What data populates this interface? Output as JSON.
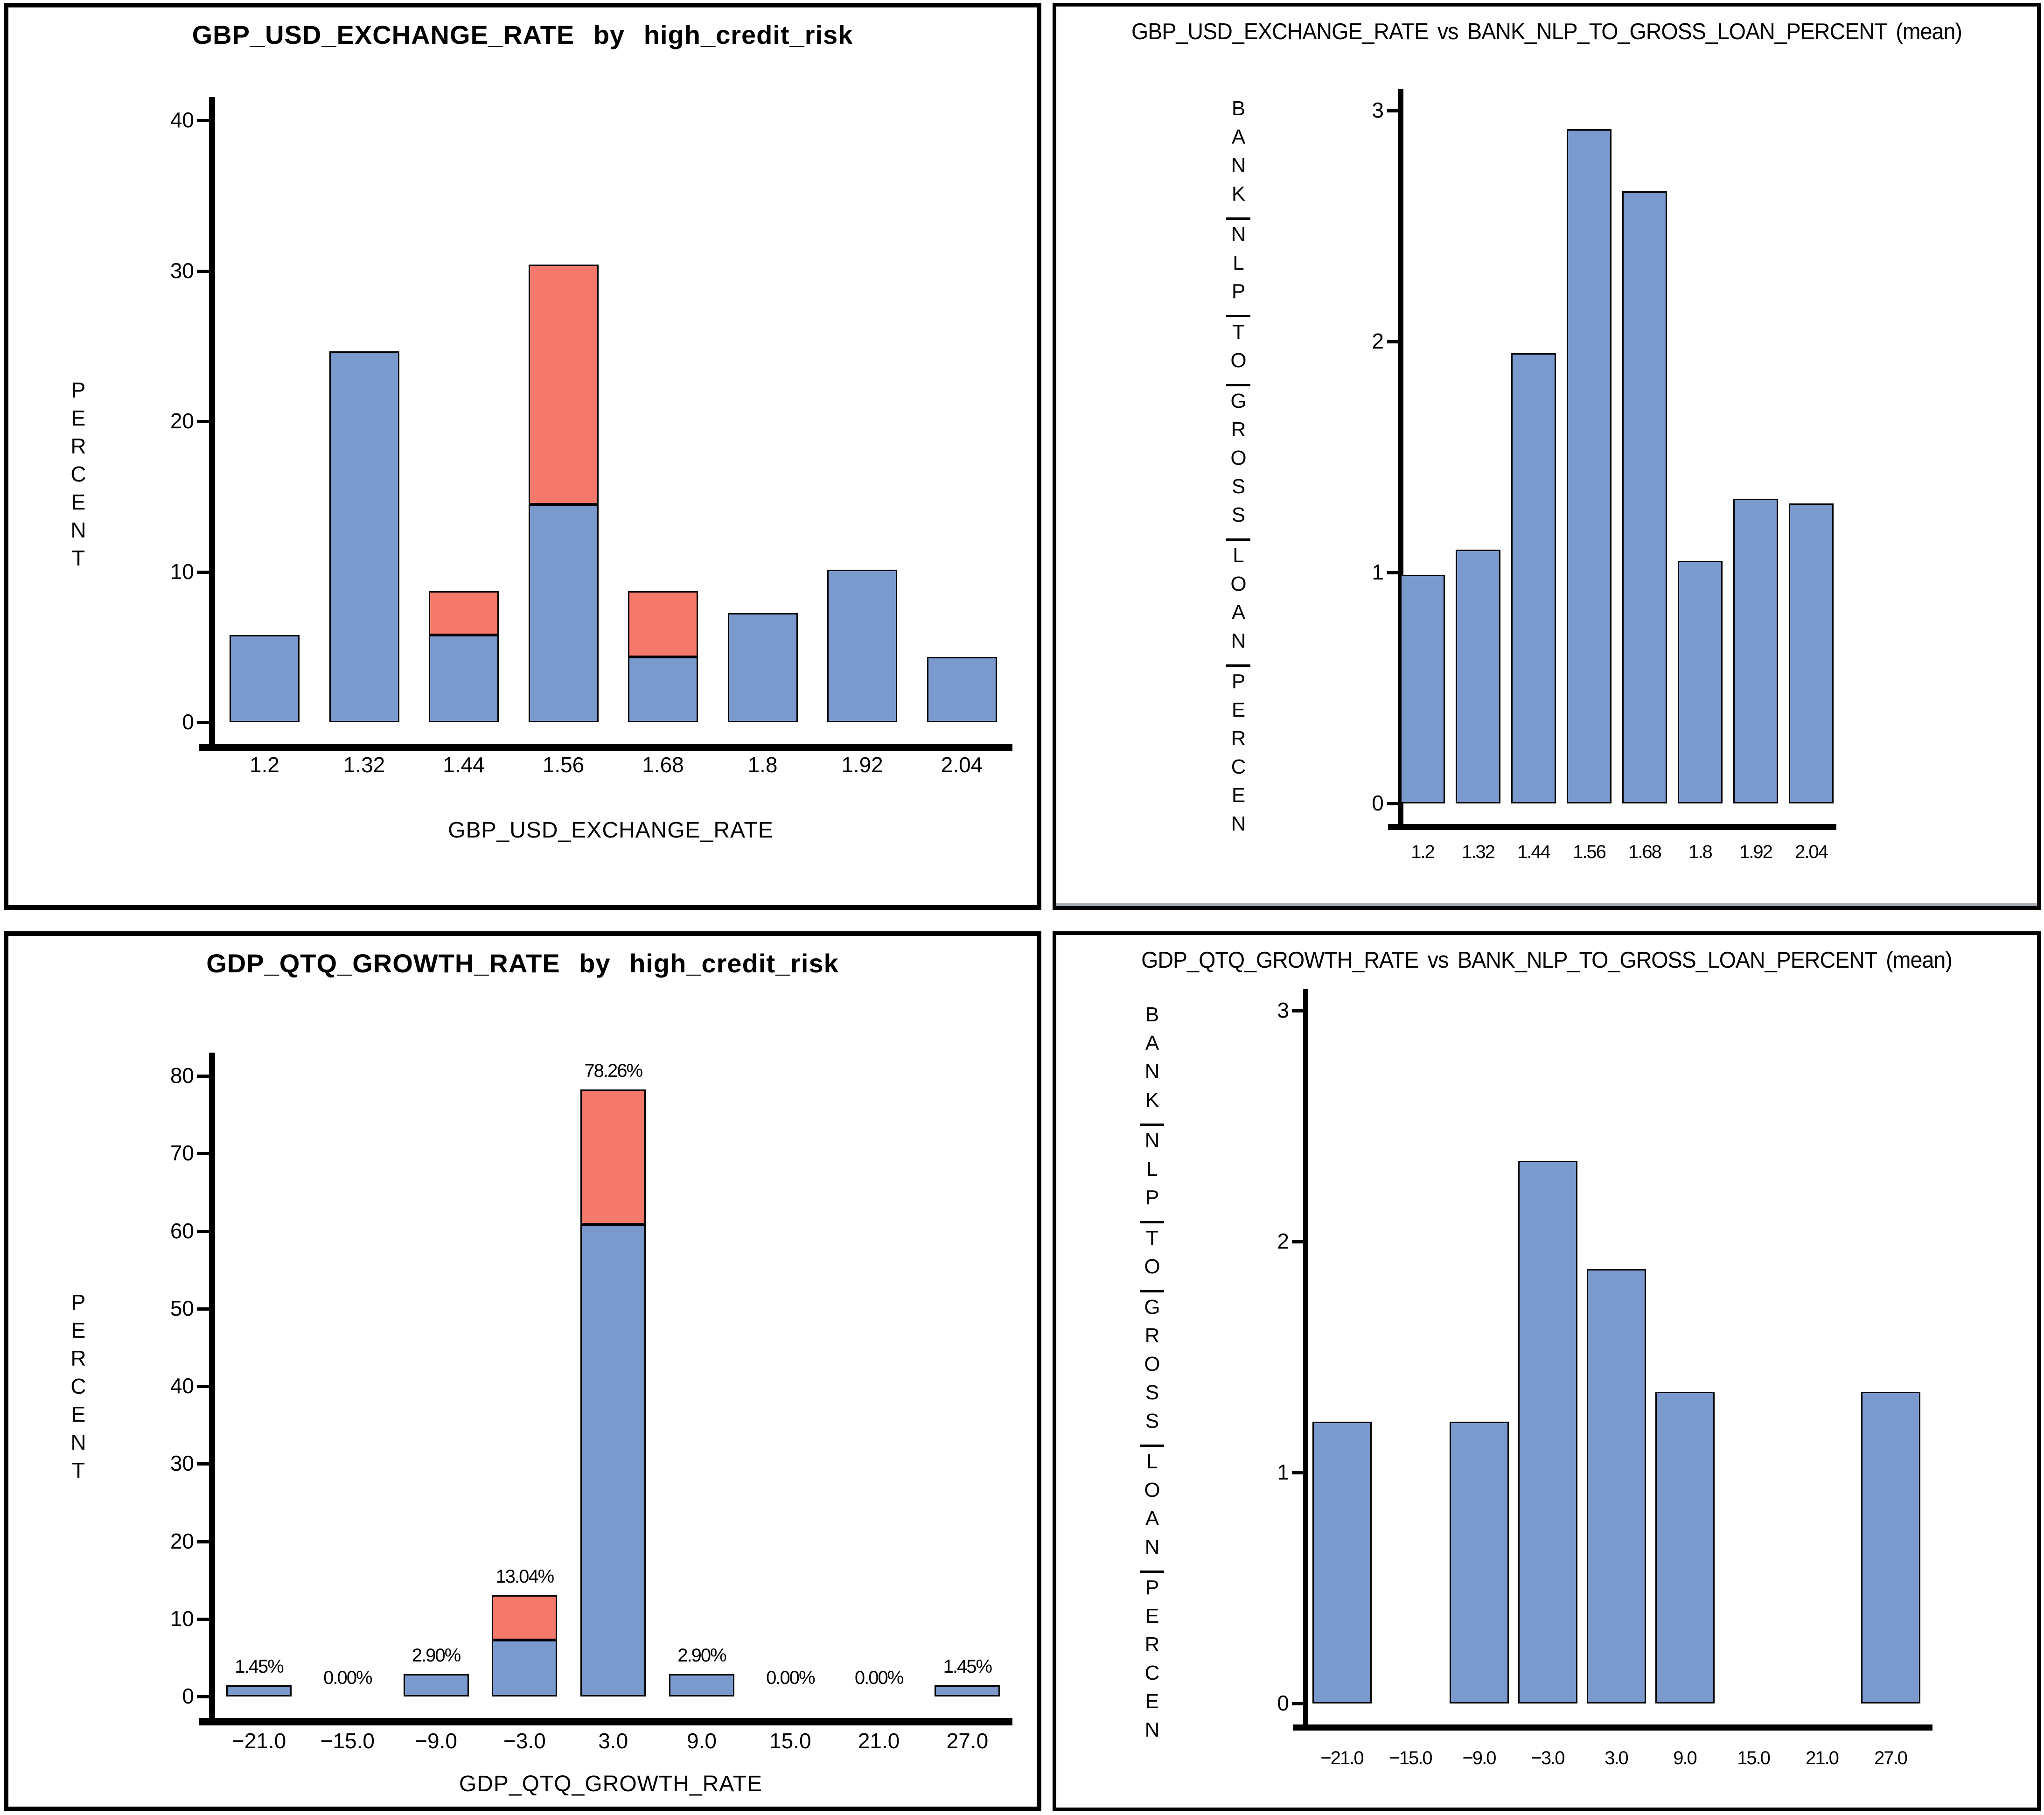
{
  "colors": {
    "bar_blue": "#7a99cc",
    "bar_red": "#f4796a",
    "axis": "#000000",
    "separator_gray": "#a7aeb6"
  },
  "chart_data": [
    {
      "type": "bar",
      "stacked": true,
      "title": "GBP_USD_EXCHANGE_RATE by high_credit_risk",
      "xlabel": "GBP_USD_EXCHANGE_RATE",
      "ylabel": "PERCENT",
      "categories": [
        "1.2",
        "1.32",
        "1.44",
        "1.56",
        "1.68",
        "1.8",
        "1.92",
        "2.04"
      ],
      "series": [
        {
          "name": "group_blue",
          "color_key": "bar_blue",
          "values": [
            5.8,
            24.64,
            5.8,
            14.49,
            4.35,
            7.25,
            10.14,
            4.35
          ]
        },
        {
          "name": "group_red",
          "color_key": "bar_red",
          "values": [
            0,
            0,
            2.9,
            15.94,
            4.35,
            0,
            0,
            0
          ]
        }
      ],
      "ylim": [
        0,
        40
      ],
      "yticks": [
        0,
        10,
        20,
        30,
        40
      ],
      "grid": false,
      "legend": "none"
    },
    {
      "type": "bar",
      "stacked": false,
      "title": "GBP_USD_EXCHANGE_RATE vs BANK_NLP_TO_GROSS_LOAN_PERCENT (mean)",
      "xlabel": "",
      "ylabel": "BANK_NLP_TO_GROSS_LOAN_PERCEN",
      "categories": [
        "1.2",
        "1.32",
        "1.44",
        "1.56",
        "1.68",
        "1.8",
        "1.92",
        "2.04"
      ],
      "series": [
        {
          "name": "mean",
          "color_key": "bar_blue",
          "values": [
            0.99,
            1.1,
            1.95,
            2.92,
            2.65,
            1.05,
            1.32,
            1.3
          ]
        }
      ],
      "ylim": [
        0,
        3
      ],
      "yticks": [
        0,
        1,
        2,
        3
      ],
      "grid": false,
      "legend": "none"
    },
    {
      "type": "bar",
      "stacked": true,
      "title": "GDP_QTQ_GROWTH_RATE by high_credit_risk",
      "xlabel": "GDP_QTQ_GROWTH_RATE",
      "ylabel": "PERCENT",
      "categories": [
        "−21.0",
        "−15.0",
        "−9.0",
        "−3.0",
        "3.0",
        "9.0",
        "15.0",
        "21.0",
        "27.0"
      ],
      "series": [
        {
          "name": "group_blue",
          "color_key": "bar_blue",
          "values": [
            1.45,
            0,
            2.9,
            7.25,
            60.87,
            2.9,
            0,
            0,
            1.45
          ]
        },
        {
          "name": "group_red",
          "color_key": "bar_red",
          "values": [
            0,
            0,
            0,
            5.8,
            17.39,
            0,
            0,
            0,
            0
          ]
        }
      ],
      "bar_labels": [
        "1.45%",
        "0.00%",
        "2.90%",
        "13.04%",
        "78.26%",
        "2.90%",
        "0.00%",
        "0.00%",
        "1.45%"
      ],
      "ylim": [
        0,
        80
      ],
      "yticks": [
        0,
        10,
        20,
        30,
        40,
        50,
        60,
        70,
        80
      ],
      "grid": false,
      "legend": "none"
    },
    {
      "type": "bar",
      "stacked": false,
      "title": "GDP_QTQ_GROWTH_RATE vs BANK_NLP_TO_GROSS_LOAN_PERCENT (mean)",
      "xlabel": "",
      "ylabel": "BANK_NLP_TO_GROSS_LOAN_PERCEN",
      "categories": [
        "−21.0",
        "−15.0",
        "−9.0",
        "−3.0",
        "3.0",
        "9.0",
        "15.0",
        "21.0",
        "27.0"
      ],
      "series": [
        {
          "name": "mean",
          "color_key": "bar_blue",
          "values": [
            1.22,
            0,
            1.22,
            2.35,
            1.88,
            1.35,
            0,
            0,
            1.35
          ]
        }
      ],
      "ylim": [
        0,
        3
      ],
      "yticks": [
        0,
        1,
        2,
        3
      ],
      "grid": false,
      "legend": "none"
    }
  ]
}
